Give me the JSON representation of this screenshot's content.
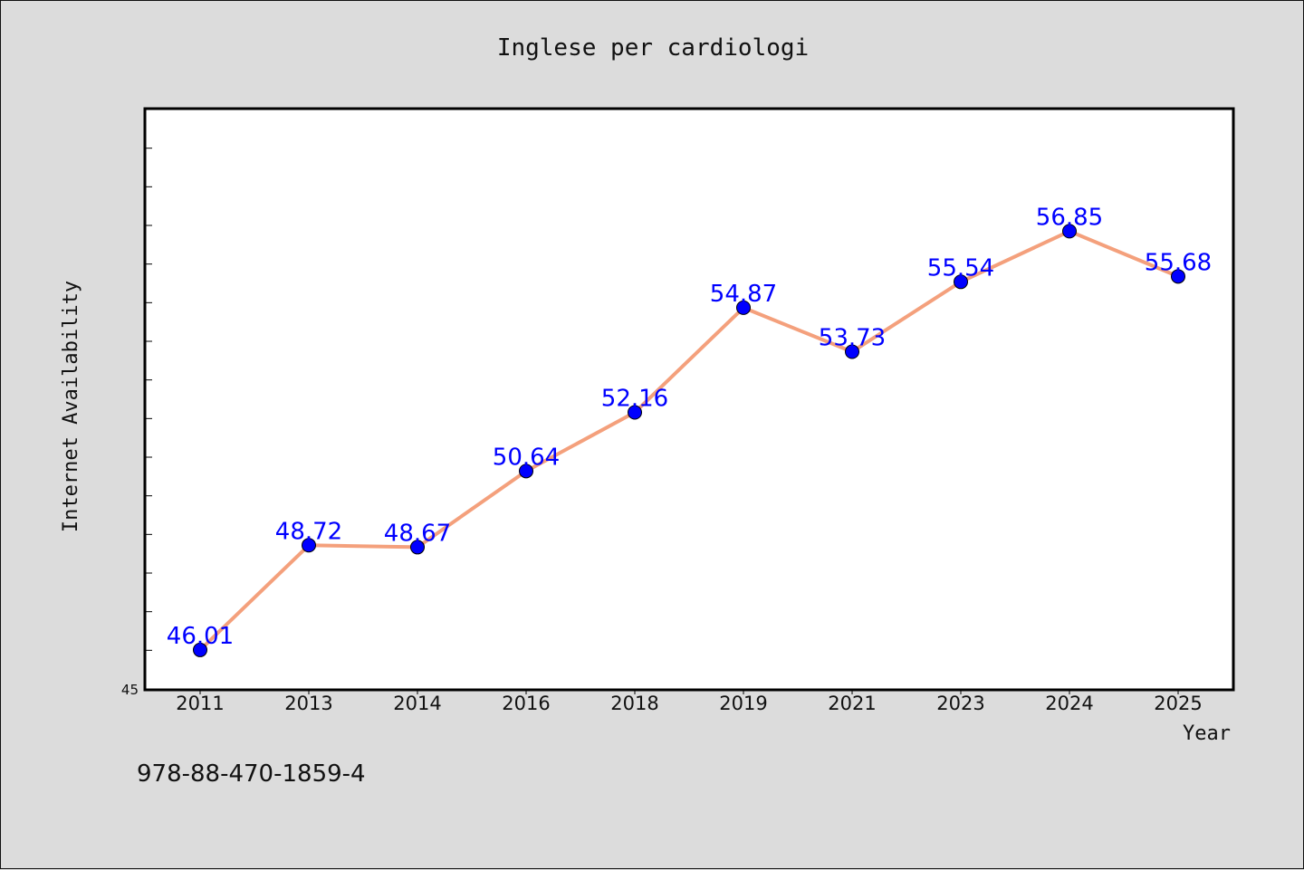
{
  "chart_data": {
    "type": "line",
    "title": "Inglese per cardiologi",
    "xlabel": "Year",
    "ylabel": "Internet Availability",
    "categories": [
      "2011",
      "2013",
      "2014",
      "2016",
      "2018",
      "2019",
      "2021",
      "2023",
      "2024",
      "2025"
    ],
    "series": [
      {
        "values": [
          46.01,
          48.72,
          48.67,
          50.64,
          52.16,
          54.87,
          53.73,
          55.54,
          56.85,
          55.68
        ],
        "labels": [
          "46.01",
          "48.72",
          "48.67",
          "50.64",
          "52.16",
          "54.87",
          "53.73",
          "55.54",
          "56.85",
          "55.68"
        ]
      }
    ],
    "ylim": [
      45,
      60
    ],
    "y_ticks_labeled": [
      "45"
    ],
    "grid": false,
    "legend": "none",
    "colors": {
      "line": "#f4a07c",
      "marker": "#0000ff",
      "data_label": "#0000ff",
      "background": "#dcdcdc",
      "plot_background": "#ffffff"
    }
  },
  "footer_text": "978-88-470-1859-4"
}
